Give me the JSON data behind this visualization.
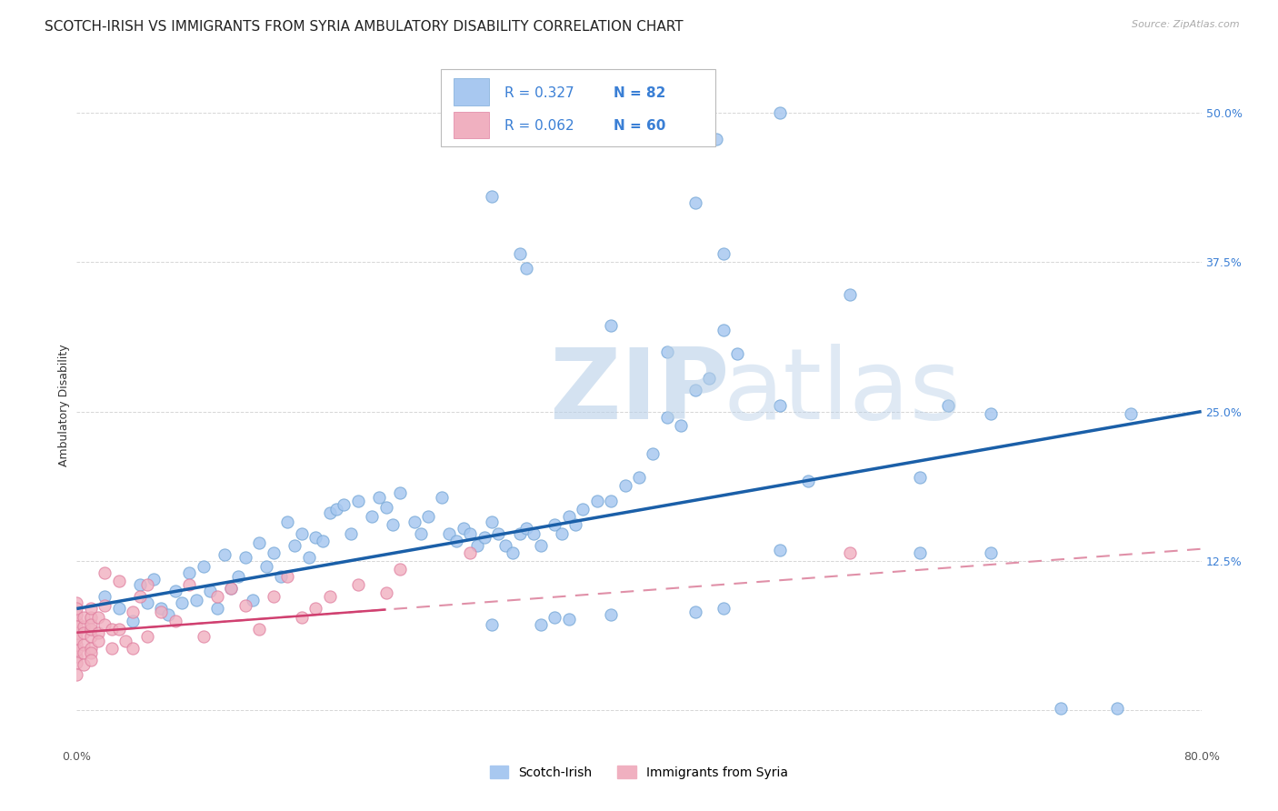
{
  "title": "SCOTCH-IRISH VS IMMIGRANTS FROM SYRIA AMBULATORY DISABILITY CORRELATION CHART",
  "source": "Source: ZipAtlas.com",
  "ylabel": "Ambulatory Disability",
  "xlabel": "",
  "background_color": "#ffffff",
  "legend_r_values": [
    "R = 0.327",
    "R = 0.062"
  ],
  "legend_n_values": [
    "N = 82",
    "N = 60"
  ],
  "scotch_irish_color": "#a8c8f0",
  "scotch_irish_edge_color": "#7aaad8",
  "syria_color": "#f0b0c0",
  "syria_edge_color": "#e080a0",
  "scotch_irish_line_color": "#1a5fa8",
  "syria_line_color": "#d04070",
  "syria_dash_color": "#e090a8",
  "r_n_color": "#3a7fd5",
  "xlim": [
    0.0,
    0.8
  ],
  "ylim": [
    -0.03,
    0.54
  ],
  "scotch_irish_x": [
    0.02,
    0.03,
    0.04,
    0.045,
    0.05,
    0.055,
    0.06,
    0.065,
    0.07,
    0.075,
    0.08,
    0.085,
    0.09,
    0.095,
    0.1,
    0.105,
    0.11,
    0.115,
    0.12,
    0.125,
    0.13,
    0.135,
    0.14,
    0.145,
    0.15,
    0.155,
    0.16,
    0.165,
    0.17,
    0.175,
    0.18,
    0.185,
    0.19,
    0.195,
    0.2,
    0.21,
    0.215,
    0.22,
    0.225,
    0.23,
    0.24,
    0.245,
    0.25,
    0.26,
    0.265,
    0.27,
    0.275,
    0.28,
    0.285,
    0.29,
    0.295,
    0.3,
    0.305,
    0.31,
    0.315,
    0.32,
    0.325,
    0.33,
    0.34,
    0.345,
    0.35,
    0.355,
    0.36,
    0.37,
    0.38,
    0.39,
    0.4,
    0.41,
    0.42,
    0.43,
    0.44,
    0.45,
    0.46,
    0.47,
    0.5,
    0.52,
    0.55,
    0.6,
    0.62,
    0.65,
    0.7,
    0.75
  ],
  "scotch_irish_y": [
    0.095,
    0.085,
    0.075,
    0.105,
    0.09,
    0.11,
    0.085,
    0.08,
    0.1,
    0.09,
    0.115,
    0.092,
    0.12,
    0.1,
    0.085,
    0.13,
    0.102,
    0.112,
    0.128,
    0.092,
    0.14,
    0.12,
    0.132,
    0.112,
    0.158,
    0.138,
    0.148,
    0.128,
    0.145,
    0.142,
    0.165,
    0.168,
    0.172,
    0.148,
    0.175,
    0.162,
    0.178,
    0.17,
    0.155,
    0.182,
    0.158,
    0.148,
    0.162,
    0.178,
    0.148,
    0.142,
    0.152,
    0.148,
    0.138,
    0.145,
    0.158,
    0.148,
    0.138,
    0.132,
    0.148,
    0.152,
    0.148,
    0.138,
    0.155,
    0.148,
    0.162,
    0.155,
    0.168,
    0.175,
    0.175,
    0.188,
    0.195,
    0.215,
    0.245,
    0.238,
    0.268,
    0.278,
    0.318,
    0.298,
    0.255,
    0.192,
    0.348,
    0.195,
    0.255,
    0.248,
    0.002,
    0.248
  ],
  "scotch_irish_x2": [
    0.295,
    0.33,
    0.34,
    0.35,
    0.38,
    0.44,
    0.46,
    0.5,
    0.6,
    0.65,
    0.74
  ],
  "scotch_irish_y2": [
    0.072,
    0.072,
    0.078,
    0.076,
    0.08,
    0.082,
    0.085,
    0.134,
    0.132,
    0.132,
    0.002
  ],
  "scotch_high_x": [
    0.295,
    0.315,
    0.32,
    0.38,
    0.42,
    0.44,
    0.455,
    0.46,
    0.5
  ],
  "scotch_high_y": [
    0.43,
    0.382,
    0.37,
    0.322,
    0.3,
    0.425,
    0.478,
    0.382,
    0.5
  ],
  "syria_x": [
    0.0,
    0.0,
    0.0,
    0.0,
    0.0,
    0.0,
    0.0,
    0.0,
    0.0,
    0.0,
    0.0,
    0.0,
    0.005,
    0.005,
    0.005,
    0.005,
    0.005,
    0.005,
    0.01,
    0.01,
    0.01,
    0.01,
    0.01,
    0.01,
    0.01,
    0.01,
    0.015,
    0.015,
    0.015,
    0.02,
    0.02,
    0.02,
    0.025,
    0.025,
    0.03,
    0.03,
    0.035,
    0.04,
    0.04,
    0.045,
    0.05,
    0.05,
    0.06,
    0.07,
    0.08,
    0.09,
    0.1,
    0.11,
    0.12,
    0.13,
    0.14,
    0.15,
    0.16,
    0.17,
    0.18,
    0.2,
    0.22,
    0.23,
    0.28,
    0.55
  ],
  "syria_y": [
    0.045,
    0.055,
    0.065,
    0.075,
    0.08,
    0.04,
    0.03,
    0.09,
    0.07,
    0.05,
    0.06,
    0.085,
    0.055,
    0.07,
    0.048,
    0.065,
    0.078,
    0.038,
    0.062,
    0.078,
    0.052,
    0.068,
    0.085,
    0.048,
    0.072,
    0.042,
    0.065,
    0.078,
    0.058,
    0.115,
    0.072,
    0.088,
    0.068,
    0.052,
    0.108,
    0.068,
    0.058,
    0.082,
    0.052,
    0.095,
    0.105,
    0.062,
    0.082,
    0.075,
    0.105,
    0.062,
    0.095,
    0.102,
    0.088,
    0.068,
    0.095,
    0.112,
    0.078,
    0.085,
    0.095,
    0.105,
    0.098,
    0.118,
    0.132,
    0.132
  ],
  "title_fontsize": 11,
  "axis_fontsize": 9,
  "tick_fontsize": 9,
  "grid_color": "#cccccc",
  "watermark_zip_color": "#d0e4f4",
  "watermark_atlas_color": "#c8ddf0"
}
